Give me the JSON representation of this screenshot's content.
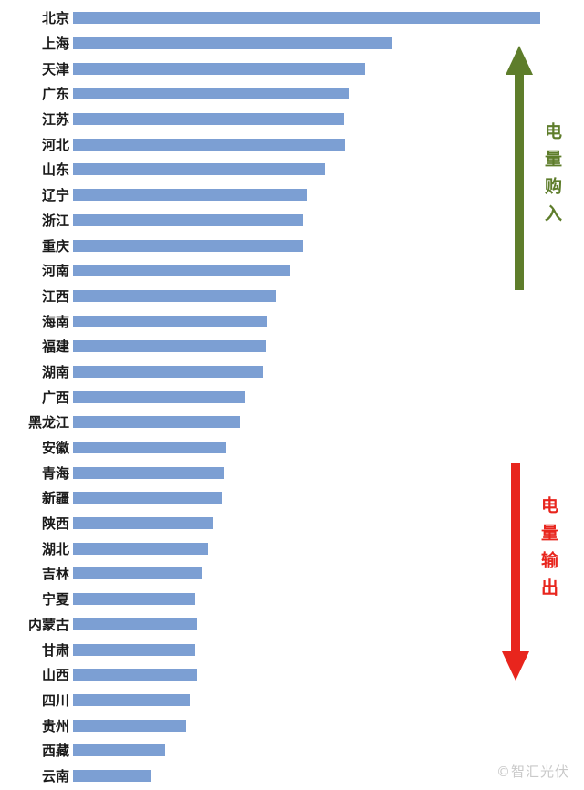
{
  "chart_data": {
    "type": "bar",
    "orientation": "horizontal",
    "title": "",
    "xlabel": "",
    "ylabel": "",
    "axis_tick_labels_visible": false,
    "grid": false,
    "bar_color": "#7C9FD3",
    "categories": [
      "北京",
      "上海",
      "天津",
      "广东",
      "江苏",
      "河北",
      "山东",
      "辽宁",
      "浙江",
      "重庆",
      "河南",
      "江西",
      "海南",
      "福建",
      "湖南",
      "广西",
      "黑龙江",
      "安徽",
      "青海",
      "新疆",
      "陕西",
      "湖北",
      "吉林",
      "宁夏",
      "内蒙古",
      "甘肃",
      "山西",
      "四川",
      "贵州",
      "西藏",
      "云南"
    ],
    "values_percent_of_max": [
      100,
      68.4,
      62.5,
      59.0,
      58.0,
      58.2,
      53.9,
      50.0,
      49.2,
      49.2,
      46.5,
      43.6,
      41.6,
      41.2,
      40.6,
      36.7,
      35.7,
      32.8,
      32.4,
      31.8,
      29.9,
      28.9,
      27.5,
      26.2,
      26.6,
      26.2,
      26.6,
      25.0,
      24.2,
      19.7,
      16.8
    ],
    "annotations": [
      {
        "text": "电量购入",
        "direction": "up",
        "color": "#5E7D2B"
      },
      {
        "text": "电量输出",
        "direction": "down",
        "color": "#E8251D"
      }
    ]
  },
  "watermark": "©智汇光伏",
  "colors": {
    "bar": "#7C9FD3",
    "purchase_arrow": "#5E7D2B",
    "output_arrow": "#E8251D",
    "watermark_text": "#c9c9c9",
    "background": "#ffffff"
  }
}
